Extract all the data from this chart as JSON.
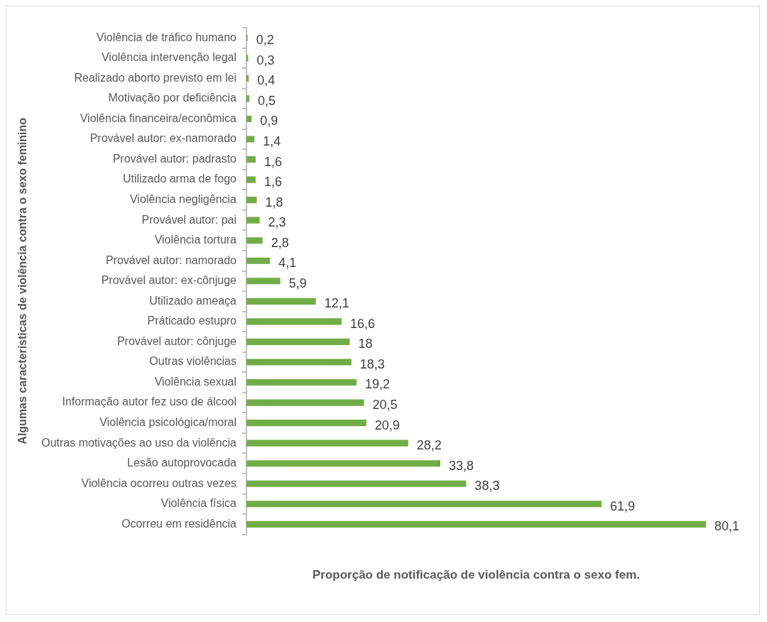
{
  "chart_data": {
    "type": "bar",
    "orientation": "horizontal",
    "xlabel": "Proporção de notificação de violência contra o sexo fem.",
    "ylabel": "Algumas características de violência contra o sexo feminino",
    "categories": [
      "Violência de tráfico humano",
      "Violência intervenção legal",
      "Realizado aborto previsto em lei",
      "Motivação por deficiência",
      "Violência financeira/econômica",
      "Provável autor: ex-namorado",
      "Provável autor: padrasto",
      "Utilizado arma de fogo",
      "Violência negligência",
      "Provável autor: pai",
      "Violência tortura",
      "Provável autor: namorado",
      "Provável autor: ex-cônjuge",
      "Utilizado ameaça",
      "Práticado estupro",
      "Provável autor: cônjuge",
      "Outras violências",
      "Violência sexual",
      "Informação autor fez uso de álcool",
      "Violência psicológica/moral",
      "Outras motivações ao uso da violência",
      "Lesão autoprovocada",
      "Violência ocorreu outras vezes",
      "Violência física",
      "Ocorreu em residência"
    ],
    "values": [
      0.2,
      0.3,
      0.4,
      0.5,
      0.9,
      1.4,
      1.6,
      1.6,
      1.8,
      2.3,
      2.8,
      4.1,
      5.9,
      12.1,
      16.6,
      18,
      18.3,
      19.2,
      20.5,
      20.9,
      28.2,
      33.8,
      38.3,
      61.9,
      80.1
    ],
    "value_labels": [
      "0,2",
      "0,3",
      "0,4",
      "0,5",
      "0,9",
      "1,4",
      "1,6",
      "1,6",
      "1,8",
      "2,3",
      "2,8",
      "4,1",
      "5,9",
      "12,1",
      "16,6",
      "18",
      "18,3",
      "19,2",
      "20,5",
      "20,9",
      "28,2",
      "33,8",
      "38,3",
      "61,9",
      "80,1"
    ],
    "color": "#70ad47"
  }
}
